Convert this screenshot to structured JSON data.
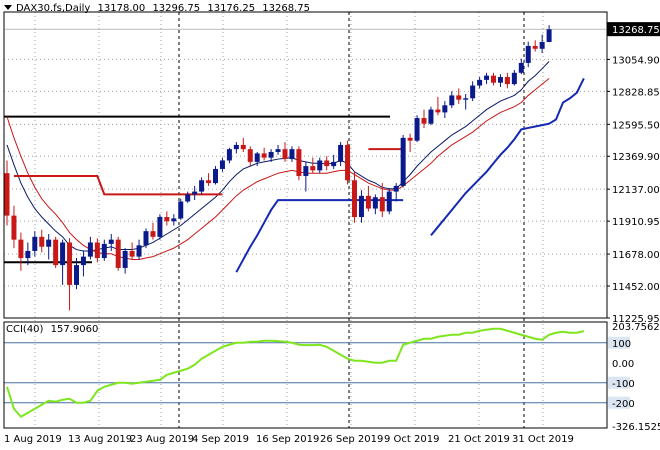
{
  "header": {
    "symbol": "DAX30.fs,Daily",
    "open": "13178.00",
    "high": "13296.75",
    "low": "13176.25",
    "close": "13268.75"
  },
  "cci": {
    "label": "CCI(40)",
    "value": "157.9060"
  },
  "colors": {
    "bull": "#0a1a8a",
    "bear": "#c81818",
    "ma_fast": "#0a1a6a",
    "ma_slow": "#c81818",
    "trail": "#1428b4",
    "level_line": "#000000",
    "cci_line": "#7ee61e",
    "cci_level": "#4670a0",
    "price_tag_bg": "#000000"
  },
  "chart_data": [
    {
      "type": "candlestick",
      "title": "DAX30.fs,Daily",
      "current_price": "13268.75",
      "y_ticks": [
        "13054.90",
        "12828.85",
        "12595.50",
        "12369.90",
        "12137.00",
        "11910.95",
        "11678.00",
        "11452.00",
        "11225.95"
      ],
      "y_range": [
        11225.95,
        13390
      ],
      "x_labels": [
        "1 Aug 2019",
        "13 Aug 2019",
        "23 Aug 2019",
        "4 Sep 2019",
        "16 Sep 2019",
        "26 Sep 2019",
        "9 Oct 2019",
        "21 Oct 2019",
        "31 Oct 2019"
      ],
      "grid": true,
      "horizontal_levels": [
        12650,
        11620
      ],
      "candles": [
        {
          "o": 12250,
          "h": 12340,
          "l": 11880,
          "c": 11950
        },
        {
          "o": 11950,
          "h": 12020,
          "l": 11720,
          "c": 11780
        },
        {
          "o": 11780,
          "h": 11830,
          "l": 11560,
          "c": 11650
        },
        {
          "o": 11650,
          "h": 11760,
          "l": 11600,
          "c": 11700
        },
        {
          "o": 11700,
          "h": 11840,
          "l": 11660,
          "c": 11800
        },
        {
          "o": 11800,
          "h": 11850,
          "l": 11690,
          "c": 11730
        },
        {
          "o": 11730,
          "h": 11820,
          "l": 11640,
          "c": 11780
        },
        {
          "o": 11780,
          "h": 11800,
          "l": 11580,
          "c": 11600
        },
        {
          "o": 11600,
          "h": 11780,
          "l": 11460,
          "c": 11760
        },
        {
          "o": 11760,
          "h": 11790,
          "l": 11280,
          "c": 11460
        },
        {
          "o": 11460,
          "h": 11650,
          "l": 11430,
          "c": 11600
        },
        {
          "o": 11600,
          "h": 11700,
          "l": 11520,
          "c": 11660
        },
        {
          "o": 11660,
          "h": 11800,
          "l": 11640,
          "c": 11760
        },
        {
          "o": 11760,
          "h": 11790,
          "l": 11620,
          "c": 11650
        },
        {
          "o": 11650,
          "h": 11780,
          "l": 11630,
          "c": 11750
        },
        {
          "o": 11750,
          "h": 11820,
          "l": 11700,
          "c": 11780
        },
        {
          "o": 11780,
          "h": 11800,
          "l": 11560,
          "c": 11580
        },
        {
          "o": 11580,
          "h": 11720,
          "l": 11540,
          "c": 11700
        },
        {
          "o": 11700,
          "h": 11760,
          "l": 11640,
          "c": 11660
        },
        {
          "o": 11660,
          "h": 11780,
          "l": 11640,
          "c": 11740
        },
        {
          "o": 11740,
          "h": 11860,
          "l": 11720,
          "c": 11840
        },
        {
          "o": 11840,
          "h": 11900,
          "l": 11780,
          "c": 11800
        },
        {
          "o": 11800,
          "h": 11960,
          "l": 11780,
          "c": 11940
        },
        {
          "o": 11940,
          "h": 11980,
          "l": 11880,
          "c": 11910
        },
        {
          "o": 11910,
          "h": 11960,
          "l": 11880,
          "c": 11930
        },
        {
          "o": 11930,
          "h": 12070,
          "l": 11920,
          "c": 12050
        },
        {
          "o": 12050,
          "h": 12120,
          "l": 12040,
          "c": 12100
        },
        {
          "o": 12100,
          "h": 12160,
          "l": 12060,
          "c": 12120
        },
        {
          "o": 12120,
          "h": 12220,
          "l": 12100,
          "c": 12200
        },
        {
          "o": 12200,
          "h": 12250,
          "l": 12160,
          "c": 12180
        },
        {
          "o": 12180,
          "h": 12300,
          "l": 12170,
          "c": 12280
        },
        {
          "o": 12280,
          "h": 12360,
          "l": 12260,
          "c": 12340
        },
        {
          "o": 12340,
          "h": 12430,
          "l": 12320,
          "c": 12420
        },
        {
          "o": 12420,
          "h": 12470,
          "l": 12390,
          "c": 12450
        },
        {
          "o": 12450,
          "h": 12500,
          "l": 12400,
          "c": 12420
        },
        {
          "o": 12420,
          "h": 12440,
          "l": 12300,
          "c": 12330
        },
        {
          "o": 12330,
          "h": 12400,
          "l": 12300,
          "c": 12390
        },
        {
          "o": 12390,
          "h": 12430,
          "l": 12340,
          "c": 12360
        },
        {
          "o": 12360,
          "h": 12420,
          "l": 12330,
          "c": 12400
        },
        {
          "o": 12400,
          "h": 12450,
          "l": 12380,
          "c": 12420
        },
        {
          "o": 12420,
          "h": 12470,
          "l": 12330,
          "c": 12350
        },
        {
          "o": 12350,
          "h": 12440,
          "l": 12330,
          "c": 12420
        },
        {
          "o": 12420,
          "h": 12440,
          "l": 12200,
          "c": 12230
        },
        {
          "o": 12230,
          "h": 12330,
          "l": 12120,
          "c": 12300
        },
        {
          "o": 12300,
          "h": 12360,
          "l": 12250,
          "c": 12270
        },
        {
          "o": 12270,
          "h": 12360,
          "l": 12250,
          "c": 12340
        },
        {
          "o": 12340,
          "h": 12370,
          "l": 12270,
          "c": 12300
        },
        {
          "o": 12300,
          "h": 12380,
          "l": 12280,
          "c": 12330
        },
        {
          "o": 12330,
          "h": 12470,
          "l": 12300,
          "c": 12450
        },
        {
          "o": 12450,
          "h": 12480,
          "l": 12170,
          "c": 12200
        },
        {
          "o": 12200,
          "h": 12260,
          "l": 11900,
          "c": 11940
        },
        {
          "o": 11940,
          "h": 12130,
          "l": 11900,
          "c": 12090
        },
        {
          "o": 12090,
          "h": 12160,
          "l": 11980,
          "c": 12000
        },
        {
          "o": 12000,
          "h": 12100,
          "l": 11960,
          "c": 12080
        },
        {
          "o": 12080,
          "h": 12180,
          "l": 11940,
          "c": 11980
        },
        {
          "o": 11980,
          "h": 12140,
          "l": 11960,
          "c": 12120
        },
        {
          "o": 12120,
          "h": 12180,
          "l": 12050,
          "c": 12160
        },
        {
          "o": 12160,
          "h": 12520,
          "l": 12150,
          "c": 12500
        },
        {
          "o": 12500,
          "h": 12530,
          "l": 12400,
          "c": 12480
        },
        {
          "o": 12480,
          "h": 12660,
          "l": 12470,
          "c": 12640
        },
        {
          "o": 12640,
          "h": 12700,
          "l": 12570,
          "c": 12600
        },
        {
          "o": 12600,
          "h": 12720,
          "l": 12590,
          "c": 12700
        },
        {
          "o": 12700,
          "h": 12790,
          "l": 12660,
          "c": 12680
        },
        {
          "o": 12680,
          "h": 12760,
          "l": 12640,
          "c": 12730
        },
        {
          "o": 12730,
          "h": 12830,
          "l": 12710,
          "c": 12800
        },
        {
          "o": 12800,
          "h": 12850,
          "l": 12740,
          "c": 12770
        },
        {
          "o": 12770,
          "h": 12810,
          "l": 12700,
          "c": 12780
        },
        {
          "o": 12780,
          "h": 12900,
          "l": 12760,
          "c": 12870
        },
        {
          "o": 12870,
          "h": 12930,
          "l": 12850,
          "c": 12910
        },
        {
          "o": 12910,
          "h": 12960,
          "l": 12880,
          "c": 12940
        },
        {
          "o": 12940,
          "h": 12960,
          "l": 12870,
          "c": 12890
        },
        {
          "o": 12890,
          "h": 12950,
          "l": 12860,
          "c": 12930
        },
        {
          "o": 12930,
          "h": 12960,
          "l": 12850,
          "c": 12880
        },
        {
          "o": 12880,
          "h": 12980,
          "l": 12870,
          "c": 12960
        },
        {
          "o": 12960,
          "h": 13060,
          "l": 12950,
          "c": 13030
        },
        {
          "o": 13030,
          "h": 13180,
          "l": 13000,
          "c": 13150
        },
        {
          "o": 13150,
          "h": 13190,
          "l": 13110,
          "c": 13130
        },
        {
          "o": 13130,
          "h": 13230,
          "l": 13100,
          "c": 13178
        },
        {
          "o": 13178,
          "h": 13296.75,
          "l": 13176.25,
          "c": 13268.75
        }
      ],
      "overlays": [
        {
          "kind": "ma_fast",
          "values": [
            12450,
            12310,
            12180,
            12080,
            12000,
            11940,
            11890,
            11840,
            11800,
            11740,
            11710,
            11700,
            11700,
            11710,
            11720,
            11730,
            11710,
            11710,
            11710,
            11720,
            11740,
            11760,
            11790,
            11820,
            11850,
            11880,
            11920,
            11960,
            12000,
            12040,
            12080,
            12130,
            12190,
            12240,
            12280,
            12300,
            12320,
            12330,
            12340,
            12350,
            12355,
            12360,
            12340,
            12330,
            12320,
            12320,
            12315,
            12320,
            12340,
            12320,
            12260,
            12230,
            12200,
            12180,
            12150,
            12140,
            12140,
            12190,
            12240,
            12300,
            12350,
            12400,
            12440,
            12480,
            12520,
            12550,
            12580,
            12620,
            12660,
            12700,
            12730,
            12760,
            12780,
            12800,
            12840,
            12900,
            12940,
            12990,
            13040
          ]
        },
        {
          "kind": "ma_slow",
          "values": [
            12650,
            12500,
            12370,
            12250,
            12150,
            12070,
            12010,
            11960,
            11900,
            11830,
            11780,
            11740,
            11710,
            11690,
            11680,
            11680,
            11660,
            11650,
            11640,
            11640,
            11650,
            11660,
            11680,
            11700,
            11720,
            11750,
            11780,
            11820,
            11860,
            11900,
            11940,
            11990,
            12040,
            12090,
            12130,
            12160,
            12190,
            12210,
            12230,
            12250,
            12260,
            12270,
            12260,
            12250,
            12250,
            12250,
            12250,
            12260,
            12270,
            12270,
            12240,
            12210,
            12180,
            12160,
            12140,
            12130,
            12130,
            12160,
            12200,
            12240,
            12280,
            12320,
            12370,
            12410,
            12450,
            12480,
            12510,
            12540,
            12580,
            12620,
            12650,
            12680,
            12700,
            12720,
            12750,
            12800,
            12840,
            12880,
            12920
          ]
        },
        {
          "kind": "trail_red",
          "segments": [
            [
              1,
              13,
              12230
            ],
            [
              14,
              31,
              12100
            ],
            [
              52,
              57,
              12420
            ]
          ]
        },
        {
          "kind": "trail_blue",
          "points": [
            [
              33,
              11550
            ],
            [
              34,
              11640
            ],
            [
              35,
              11730
            ],
            [
              36,
              11810
            ],
            [
              37,
              11900
            ],
            [
              38,
              11990
            ],
            [
              39,
              12060
            ],
            [
              40,
              12060
            ],
            [
              41,
              12060
            ],
            [
              42,
              12060
            ],
            [
              43,
              12060
            ],
            [
              44,
              12060
            ],
            [
              45,
              12060
            ],
            [
              46,
              12060
            ],
            [
              47,
              12060
            ],
            [
              48,
              12060
            ],
            [
              49,
              12060
            ],
            [
              50,
              12060
            ],
            [
              51,
              12060
            ],
            [
              52,
              12060
            ],
            [
              53,
              12060
            ],
            [
              54,
              12060
            ],
            [
              55,
              12060
            ],
            [
              56,
              12060
            ],
            [
              57,
              12060
            ],
            [
              61,
              11810
            ],
            [
              62,
              11870
            ],
            [
              63,
              11930
            ],
            [
              64,
              11990
            ],
            [
              65,
              12050
            ],
            [
              66,
              12110
            ],
            [
              67,
              12160
            ],
            [
              68,
              12210
            ],
            [
              69,
              12260
            ],
            [
              70,
              12320
            ],
            [
              71,
              12380
            ],
            [
              72,
              12430
            ],
            [
              73,
              12490
            ],
            [
              74,
              12560
            ],
            [
              75,
              12570
            ],
            [
              76,
              12580
            ],
            [
              77,
              12590
            ],
            [
              78,
              12600
            ],
            [
              79,
              12630
            ],
            [
              80,
              12750
            ],
            [
              81,
              12780
            ],
            [
              82,
              12820
            ],
            [
              83,
              12920
            ]
          ]
        }
      ]
    },
    {
      "type": "line",
      "title": "CCI(40) 157.9060",
      "y_range": [
        -326.1525,
        203.7562
      ],
      "y_ticks": [
        "203.7562",
        "100",
        "0.00",
        "-100",
        "-200",
        "-326.1525"
      ],
      "levels": [
        100,
        -100,
        -200
      ],
      "series": [
        {
          "name": "CCI(40)",
          "values": [
            -120,
            -230,
            -270,
            -250,
            -230,
            -210,
            -190,
            -195,
            -185,
            -180,
            -200,
            -200,
            -190,
            -140,
            -120,
            -110,
            -100,
            -100,
            -105,
            -100,
            -95,
            -90,
            -85,
            -60,
            -50,
            -40,
            -30,
            -10,
            20,
            40,
            60,
            80,
            90,
            100,
            100,
            105,
            105,
            110,
            110,
            108,
            105,
            100,
            90,
            88,
            88,
            90,
            80,
            60,
            40,
            20,
            10,
            10,
            5,
            0,
            0,
            10,
            10,
            90,
            100,
            110,
            120,
            120,
            130,
            135,
            140,
            140,
            150,
            150,
            160,
            165,
            170,
            170,
            160,
            150,
            140,
            130,
            120,
            115,
            140,
            150,
            155,
            150,
            150,
            158
          ]
        }
      ]
    }
  ]
}
